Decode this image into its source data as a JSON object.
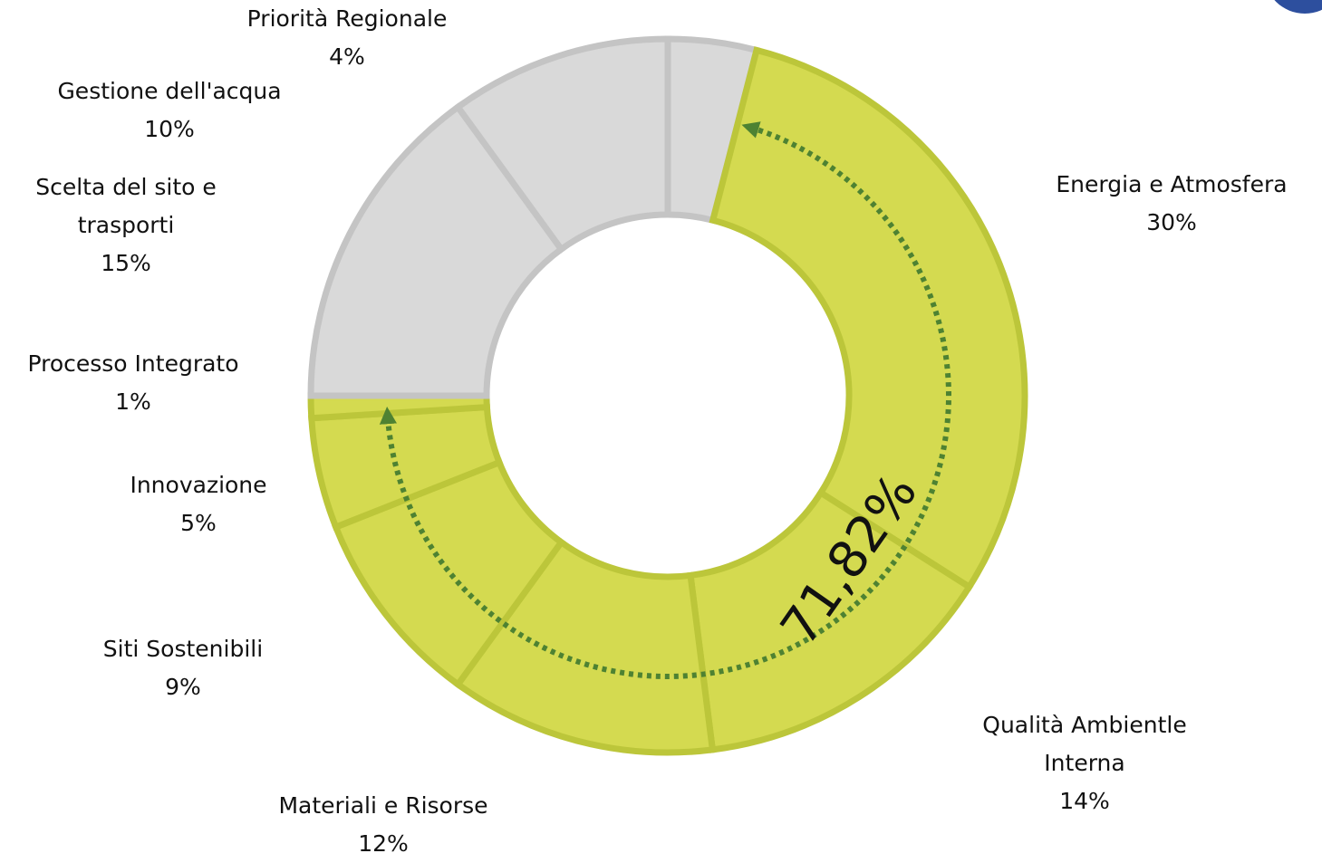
{
  "chart_data": {
    "type": "donut",
    "categories": [
      "Priorità Regionale",
      "Energia e Atmosfera",
      "Qualità Ambientle Interna",
      "Materiali e Risorse",
      "Siti Sostenibili",
      "Innovazione",
      "Processo Integrato",
      "Scelta del sito e trasporti",
      "Gestione dell'acqua"
    ],
    "values": [
      4,
      30,
      14,
      12,
      9,
      5,
      1,
      15,
      10
    ],
    "value_labels": [
      "4%",
      "30%",
      "14%",
      "12%",
      "9%",
      "5%",
      "1%",
      "15%",
      "10%"
    ],
    "colors": [
      "#d9d9d9",
      "#d4da50",
      "#d4da50",
      "#d4da50",
      "#d4da50",
      "#d4da50",
      "#d4da50",
      "#d9d9d9",
      "#d9d9d9"
    ],
    "annotation": "71,82%"
  }
}
